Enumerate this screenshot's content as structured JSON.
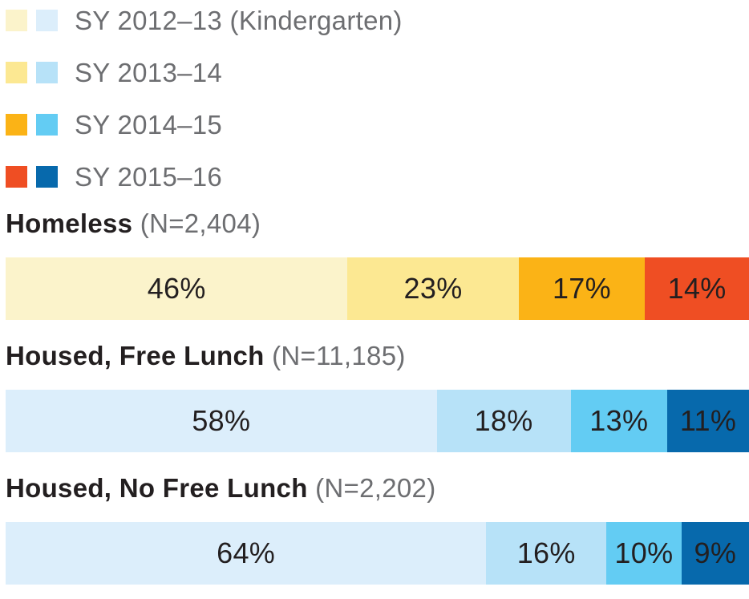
{
  "colors": {
    "background": "#ffffff",
    "text_dark": "#231f20",
    "text_gray": "#6d6e71",
    "warm_palette": [
      "#FBF3CB",
      "#FCE892",
      "#FBB316",
      "#EF4E23"
    ],
    "blue_palette": [
      "#DCEEFB",
      "#B7E2F8",
      "#63CCF3",
      "#0769AC"
    ]
  },
  "legend": {
    "items": [
      {
        "label": "SY 2012–13 (Kindergarten)",
        "warm_swatch": "#FBF3CB",
        "blue_swatch": "#DCEEFB"
      },
      {
        "label": "SY 2013–14",
        "warm_swatch": "#FCE892",
        "blue_swatch": "#B7E2F8"
      },
      {
        "label": "SY 2014–15",
        "warm_swatch": "#FBB316",
        "blue_swatch": "#63CCF3"
      },
      {
        "label": "SY 2015–16",
        "warm_swatch": "#EF4E23",
        "blue_swatch": "#0769AC"
      }
    ]
  },
  "chart_data": {
    "type": "bar",
    "variant": "horizontal-stacked-100pct",
    "legend_position": "top-left",
    "series_labels": [
      "SY 2012–13 (Kindergarten)",
      "SY 2013–14",
      "SY 2014–15",
      "SY 2015–16"
    ],
    "groups": [
      {
        "label": "Homeless",
        "n_label": "(N=2,404)",
        "palette": "warm_palette",
        "values": [
          46,
          23,
          17,
          14
        ],
        "value_labels": [
          "46%",
          "23%",
          "17%",
          "14%"
        ]
      },
      {
        "label": "Housed, Free Lunch",
        "n_label": "(N=11,185)",
        "palette": "blue_palette",
        "values": [
          58,
          18,
          13,
          11
        ],
        "value_labels": [
          "58%",
          "18%",
          "13%",
          "11%"
        ]
      },
      {
        "label": "Housed, No Free Lunch",
        "n_label": "(N=2,202)",
        "palette": "blue_palette",
        "values": [
          64,
          16,
          10,
          9
        ],
        "value_labels": [
          "64%",
          "16%",
          "10%",
          "9%"
        ]
      }
    ]
  }
}
